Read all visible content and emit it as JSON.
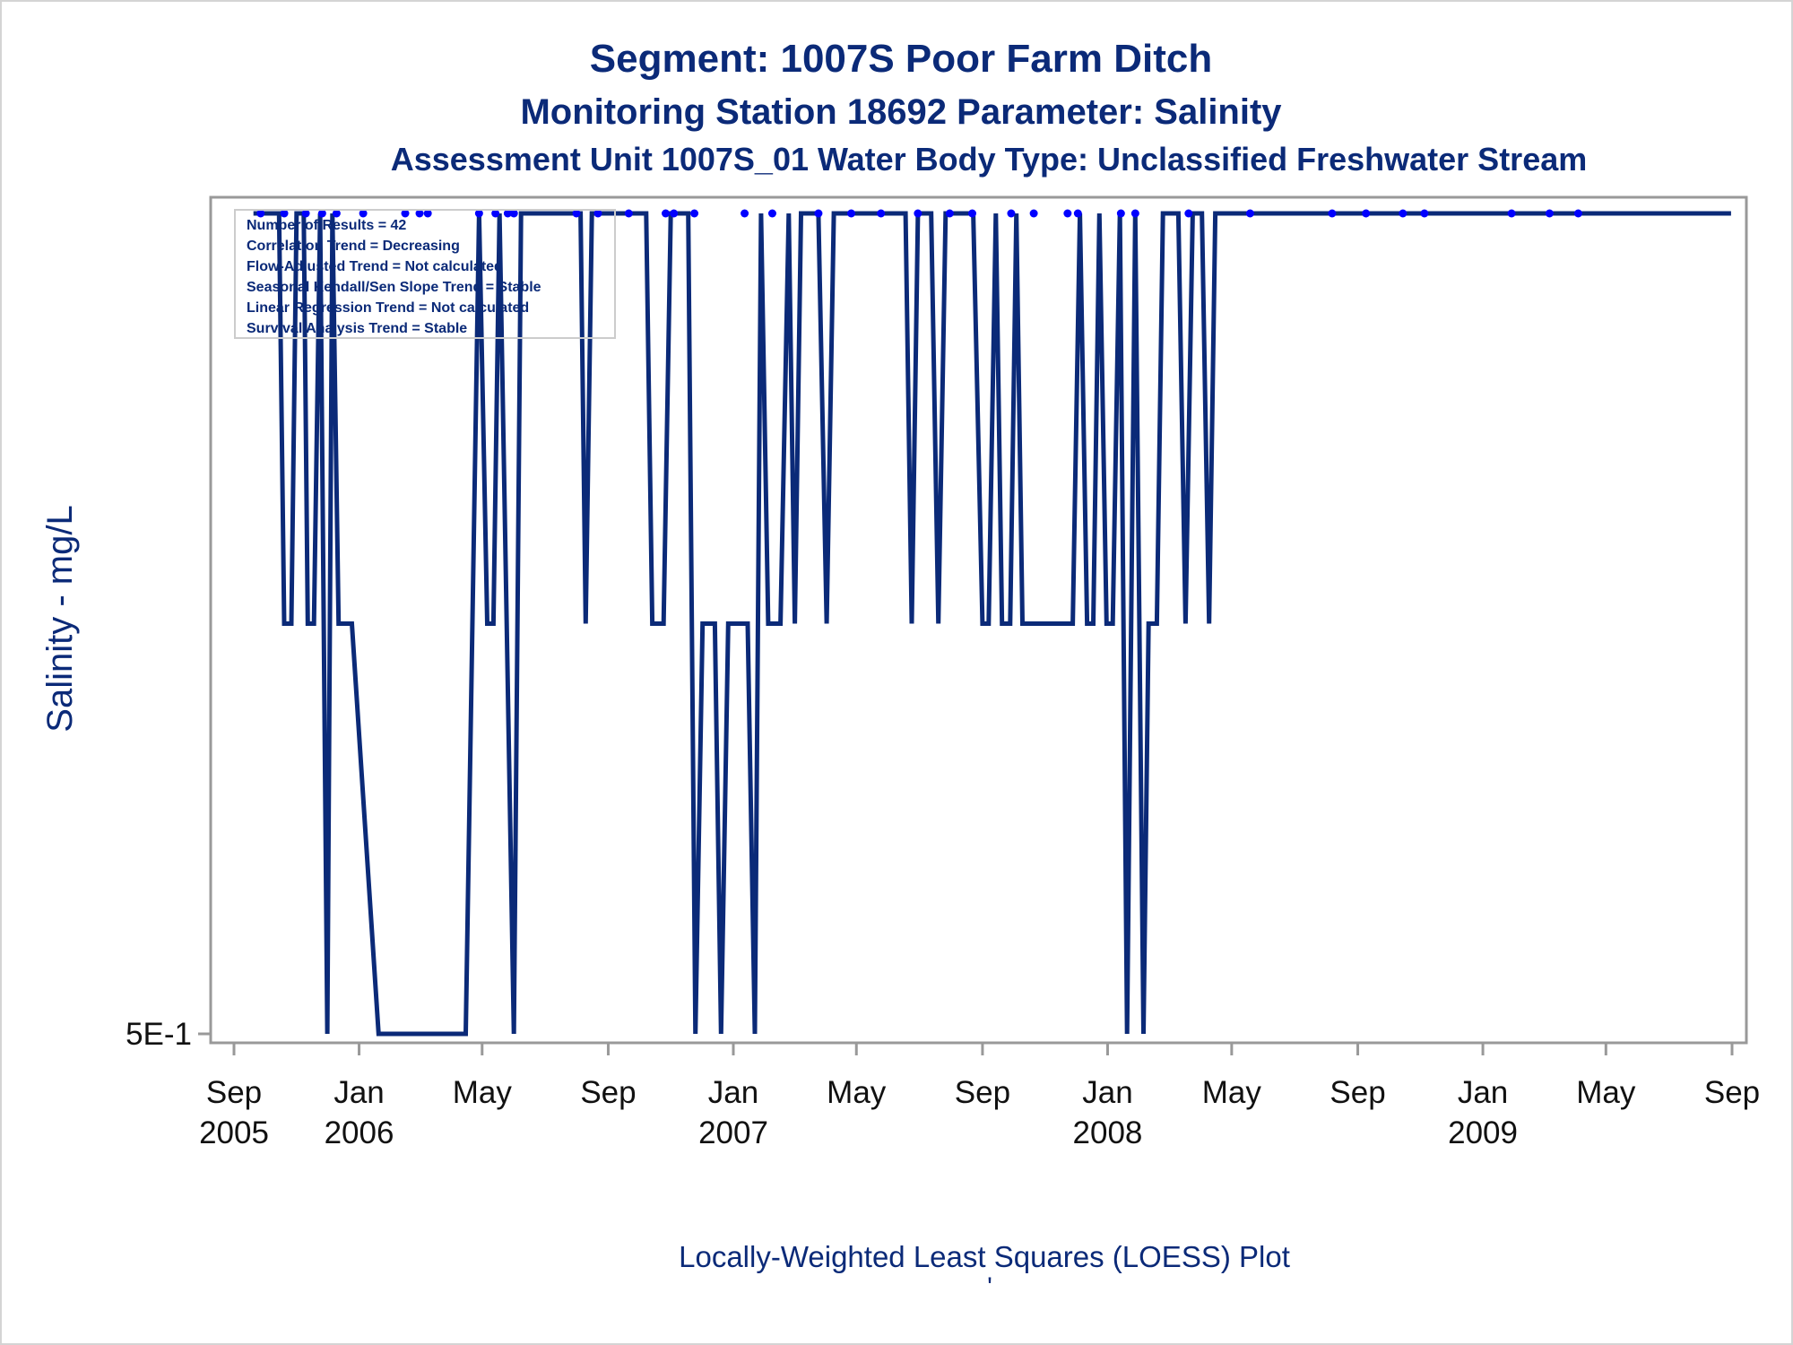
{
  "titles": {
    "line1": "Segment: 1007S  Poor Farm Ditch",
    "line2": "Monitoring Station 18692 Parameter: Salinity",
    "line3": "Assessment Unit 1007S_01   Water Body Type: Unclassified Freshwater Stream"
  },
  "footer": {
    "text": "Locally-Weighted Least Squares (LOESS) Plot",
    "mark": "'"
  },
  "chart_data": {
    "type": "line",
    "ylabel": "Salinity - mg/L",
    "xlabel": "",
    "y_scale": "log",
    "y_tick_labels": [
      "5E-1"
    ],
    "x_ticks": [
      {
        "month": "Sep",
        "year": "2005",
        "date": "2005-09-01"
      },
      {
        "month": "Jan",
        "year": "2006",
        "date": "2006-01-01"
      },
      {
        "month": "May",
        "year": "",
        "date": "2006-05-01"
      },
      {
        "month": "Sep",
        "year": "",
        "date": "2006-09-01"
      },
      {
        "month": "Jan",
        "year": "2007",
        "date": "2007-01-01"
      },
      {
        "month": "May",
        "year": "",
        "date": "2007-05-01"
      },
      {
        "month": "Sep",
        "year": "",
        "date": "2007-09-01"
      },
      {
        "month": "Jan",
        "year": "2008",
        "date": "2008-01-01"
      },
      {
        "month": "May",
        "year": "",
        "date": "2008-05-01"
      },
      {
        "month": "Sep",
        "year": "",
        "date": "2008-09-01"
      },
      {
        "month": "Jan",
        "year": "2009",
        "date": "2009-01-01"
      },
      {
        "month": "May",
        "year": "",
        "date": "2009-05-01"
      },
      {
        "month": "Sep",
        "year": "",
        "date": "2009-09-01"
      }
    ],
    "x_range": [
      "2005-09-01",
      "2009-09-01"
    ],
    "legend": {
      "placement": "top-left",
      "lines": [
        "Number of Results = 42",
        "Correlation Trend = Decreasing",
        "Flow-Adjusted Trend = Not calculated",
        "Seasonal Kendall/Sen Slope Trend = Stable",
        "Linear Regression Trend = Not calculated",
        "Survival Analysis Trend = Stable"
      ]
    },
    "series": [
      {
        "type": "step-line",
        "color": "#0b2a78",
        "levels": {
          "high": 2,
          "mid": 1,
          "low": 0.5
        },
        "points": [
          [
            "2005-09-20",
            "high"
          ],
          [
            "2005-10-15",
            "high"
          ],
          [
            "2005-10-20",
            "mid"
          ],
          [
            "2005-10-27",
            "mid"
          ],
          [
            "2005-11-01",
            "high"
          ],
          [
            "2005-11-08",
            "high"
          ],
          [
            "2005-11-12",
            "mid"
          ],
          [
            "2005-11-18",
            "mid"
          ],
          [
            "2005-11-24",
            "high"
          ],
          [
            "2005-12-01",
            "low"
          ],
          [
            "2005-12-06",
            "high"
          ],
          [
            "2005-12-12",
            "mid"
          ],
          [
            "2005-12-25",
            "mid"
          ],
          [
            "2006-01-20",
            "low"
          ],
          [
            "2006-04-15",
            "low"
          ],
          [
            "2006-04-28",
            "high"
          ],
          [
            "2006-05-06",
            "mid"
          ],
          [
            "2006-05-12",
            "mid"
          ],
          [
            "2006-05-18",
            "high"
          ],
          [
            "2006-06-01",
            "low"
          ],
          [
            "2006-06-08",
            "high"
          ],
          [
            "2006-08-05",
            "high"
          ],
          [
            "2006-08-10",
            "mid"
          ],
          [
            "2006-08-16",
            "high"
          ],
          [
            "2006-10-08",
            "high"
          ],
          [
            "2006-10-14",
            "mid"
          ],
          [
            "2006-10-25",
            "mid"
          ],
          [
            "2006-11-01",
            "high"
          ],
          [
            "2006-11-18",
            "high"
          ],
          [
            "2006-11-25",
            "low"
          ],
          [
            "2006-12-02",
            "mid"
          ],
          [
            "2006-12-14",
            "mid"
          ],
          [
            "2006-12-20",
            "low"
          ],
          [
            "2006-12-27",
            "mid"
          ],
          [
            "2007-01-15",
            "mid"
          ],
          [
            "2007-01-22",
            "low"
          ],
          [
            "2007-01-28",
            "high"
          ],
          [
            "2007-02-04",
            "mid"
          ],
          [
            "2007-02-16",
            "mid"
          ],
          [
            "2007-02-24",
            "high"
          ],
          [
            "2007-03-02",
            "mid"
          ],
          [
            "2007-03-08",
            "high"
          ],
          [
            "2007-03-25",
            "high"
          ],
          [
            "2007-04-02",
            "mid"
          ],
          [
            "2007-04-09",
            "high"
          ],
          [
            "2007-06-18",
            "high"
          ],
          [
            "2007-06-24",
            "mid"
          ],
          [
            "2007-06-30",
            "high"
          ],
          [
            "2007-07-13",
            "high"
          ],
          [
            "2007-07-20",
            "mid"
          ],
          [
            "2007-07-27",
            "high"
          ],
          [
            "2007-08-23",
            "high"
          ],
          [
            "2007-09-01",
            "mid"
          ],
          [
            "2007-09-07",
            "mid"
          ],
          [
            "2007-09-14",
            "high"
          ],
          [
            "2007-09-20",
            "mid"
          ],
          [
            "2007-09-28",
            "mid"
          ],
          [
            "2007-10-04",
            "high"
          ],
          [
            "2007-10-10",
            "mid"
          ],
          [
            "2007-11-28",
            "mid"
          ],
          [
            "2007-12-05",
            "high"
          ],
          [
            "2007-12-12",
            "mid"
          ],
          [
            "2007-12-18",
            "mid"
          ],
          [
            "2007-12-24",
            "high"
          ],
          [
            "2007-12-31",
            "mid"
          ],
          [
            "2008-01-06",
            "mid"
          ],
          [
            "2008-01-13",
            "high"
          ],
          [
            "2008-01-20",
            "low"
          ],
          [
            "2008-01-28",
            "high"
          ],
          [
            "2008-02-05",
            "low"
          ],
          [
            "2008-02-10",
            "mid"
          ],
          [
            "2008-02-18",
            "mid"
          ],
          [
            "2008-02-24",
            "high"
          ],
          [
            "2008-03-10",
            "high"
          ],
          [
            "2008-03-17",
            "mid"
          ],
          [
            "2008-03-24",
            "high"
          ],
          [
            "2008-04-02",
            "high"
          ],
          [
            "2008-04-09",
            "mid"
          ],
          [
            "2008-04-15",
            "high"
          ],
          [
            "2009-08-31",
            "high"
          ]
        ]
      },
      {
        "type": "scatter",
        "color": "#0000ff",
        "x": [
          "2005-09-27",
          "2005-10-20",
          "2005-11-10",
          "2005-11-26",
          "2005-12-10",
          "2006-01-05",
          "2006-02-15",
          "2006-03-01",
          "2006-03-09",
          "2006-04-28",
          "2006-05-14",
          "2006-05-26",
          "2006-06-01",
          "2006-08-01",
          "2006-08-22",
          "2006-09-21",
          "2006-10-27",
          "2006-11-04",
          "2006-11-24",
          "2007-01-12",
          "2007-02-08",
          "2007-03-25",
          "2007-04-26",
          "2007-05-25",
          "2007-06-30",
          "2007-07-31",
          "2007-08-22",
          "2007-09-29",
          "2007-10-21",
          "2007-11-23",
          "2007-12-03",
          "2008-01-14",
          "2008-01-28",
          "2008-03-20",
          "2008-05-19",
          "2008-08-07",
          "2008-09-09",
          "2008-10-15",
          "2008-11-05",
          "2009-01-29",
          "2009-03-07",
          "2009-04-04"
        ],
        "y_level": "high"
      }
    ]
  }
}
